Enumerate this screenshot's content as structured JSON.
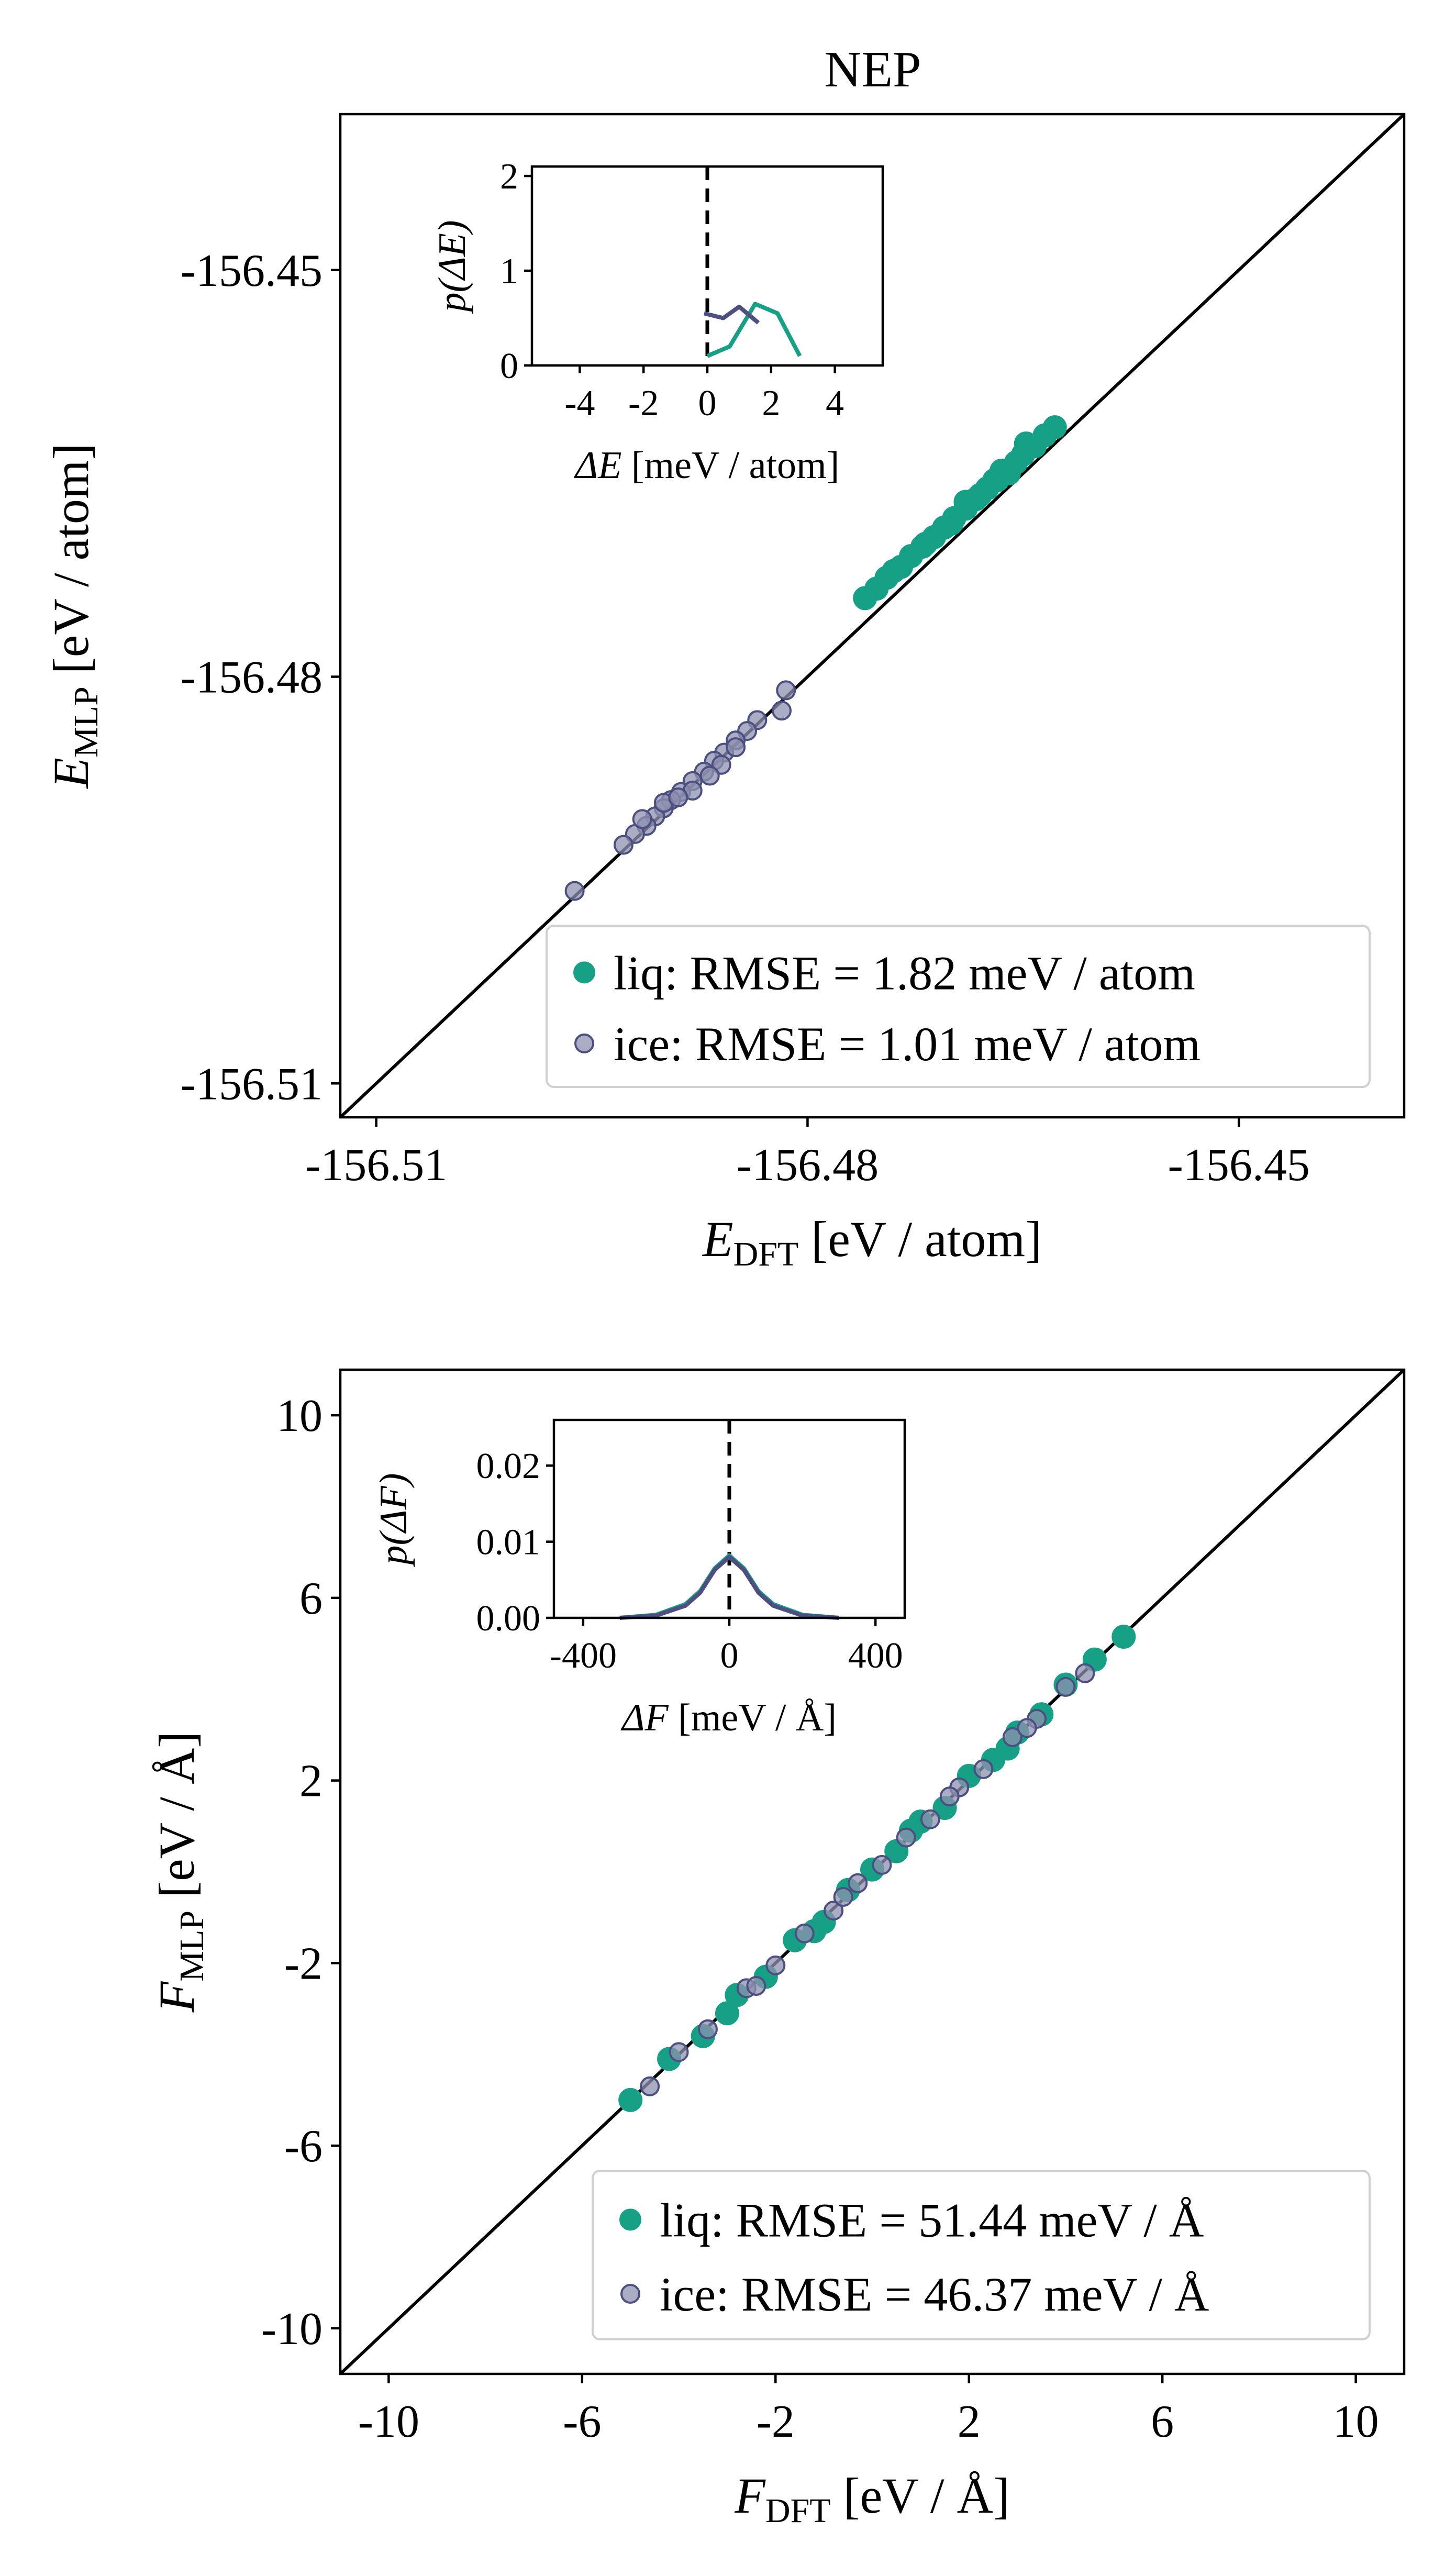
{
  "figure_title": "NEP",
  "colors": {
    "liq": "#16a085",
    "ice": "#4c4f80",
    "ice_fill": "#8e91b0",
    "diag": "#000000"
  },
  "chart_data": [
    {
      "id": "energy",
      "type": "scatter",
      "title": "NEP",
      "xlabel": {
        "sym": "E",
        "sub": "DFT",
        "unit": " [eV / atom]"
      },
      "ylabel": {
        "sym": "E",
        "sub": "MLP",
        "unit": " [eV / atom]"
      },
      "xlim": [
        -156.5125,
        -156.4385
      ],
      "ylim": [
        -156.5125,
        -156.4385
      ],
      "xticks": [
        -156.51,
        -156.48,
        -156.45
      ],
      "yticks": [
        -156.51,
        -156.48,
        -156.45
      ],
      "xticklabels": [
        "-156.51",
        "-156.48",
        "-156.45"
      ],
      "yticklabels": [
        "-156.51",
        "-156.48",
        "-156.45"
      ],
      "diagonal": true,
      "legend_position": "lower-right",
      "series": [
        {
          "name": "liq",
          "label": "liq: RMSE = 1.82 meV / atom",
          "rmse": 1.82,
          "x": [
            -156.4628,
            -156.4635,
            -156.4642,
            -156.465,
            -156.4655,
            -156.466,
            -156.4668,
            -156.4675,
            -156.4683,
            -156.469,
            -156.4698,
            -156.4705,
            -156.4712,
            -156.472,
            -156.4728,
            -156.4735,
            -156.4745,
            -156.4752,
            -156.476,
            -156.4648,
            -156.4665,
            -156.468,
            -156.47,
            -156.4718,
            -156.474,
            -156.467,
            -156.469
          ],
          "y": [
            -156.4616,
            -156.4622,
            -156.463,
            -156.4636,
            -156.4642,
            -156.465,
            -156.4655,
            -156.4661,
            -156.4669,
            -156.4676,
            -156.4683,
            -156.469,
            -156.4697,
            -156.4704,
            -156.4711,
            -156.4719,
            -156.4727,
            -156.4735,
            -156.4742,
            -156.4628,
            -156.4648,
            -156.4666,
            -156.4687,
            -156.4702,
            -156.4722,
            -156.4655,
            -156.4671
          ]
        },
        {
          "name": "ice",
          "label": "ice: RMSE = 1.01 meV / atom",
          "rmse": 1.01,
          "x": [
            -156.4815,
            -156.4818,
            -156.4835,
            -156.4842,
            -156.485,
            -156.4858,
            -156.4865,
            -156.4872,
            -156.488,
            -156.4888,
            -156.4895,
            -156.49,
            -156.4906,
            -156.4912,
            -156.492,
            -156.4928,
            -156.486,
            -156.488,
            -156.49,
            -156.4915,
            -156.485,
            -156.4868,
            -156.489,
            -156.4962
          ],
          "y": [
            -156.481,
            -156.4825,
            -156.4832,
            -156.484,
            -156.4847,
            -156.4856,
            -156.4862,
            -156.487,
            -156.4877,
            -156.4885,
            -156.4891,
            -156.4897,
            -156.4903,
            -156.491,
            -156.4916,
            -156.4924,
            -156.4865,
            -156.4884,
            -156.4893,
            -156.4905,
            -156.4852,
            -156.4873,
            -156.4889,
            -156.4958
          ]
        }
      ],
      "inset": {
        "xlabel": {
          "sym": "ΔE",
          "unit": " [meV / atom]"
        },
        "ylabel": {
          "text": "p(ΔE)"
        },
        "xlim": [
          -5.5,
          5.5
        ],
        "ylim": [
          0,
          2.1
        ],
        "xticks": [
          -4,
          -2,
          0,
          2,
          4
        ],
        "yticks": [
          0,
          1,
          2
        ],
        "xticklabels": [
          "-4",
          "-2",
          "0",
          "2",
          "4"
        ],
        "yticklabels": [
          "0",
          "1",
          "2"
        ],
        "series": [
          {
            "name": "liq",
            "x": [
              0.0,
              0.7,
              1.5,
              2.2,
              2.9
            ],
            "y": [
              0.1,
              0.2,
              0.65,
              0.55,
              0.1
            ]
          },
          {
            "name": "ice",
            "x": [
              -0.1,
              0.5,
              1.0,
              1.6
            ],
            "y": [
              0.55,
              0.5,
              0.62,
              0.45
            ]
          }
        ]
      }
    },
    {
      "id": "force",
      "type": "scatter",
      "xlabel": {
        "sym": "F",
        "sub": "DFT",
        "unit": " [eV / Å]"
      },
      "ylabel": {
        "sym": "F",
        "sub": "MLP",
        "unit": " [eV / Å]"
      },
      "xlim": [
        -11.0,
        11.0
      ],
      "ylim": [
        -11.0,
        11.0
      ],
      "xticks": [
        -10,
        -6,
        -2,
        2,
        6,
        10
      ],
      "yticks": [
        -10,
        -6,
        -2,
        2,
        6,
        10
      ],
      "xticklabels": [
        "-10",
        "-6",
        "-2",
        "2",
        "6",
        "10"
      ],
      "yticklabels": [
        "-10",
        "-6",
        "-2",
        "2",
        "6",
        "10"
      ],
      "diagonal": true,
      "legend_position": "lower-right",
      "series": [
        {
          "name": "liq",
          "label": "liq: RMSE = 51.44 meV / Å",
          "rmse": 51.44,
          "x": [
            -5.0,
            -4.2,
            -3.5,
            -2.8,
            -2.2,
            -1.6,
            -1.0,
            -0.5,
            0.0,
            0.5,
            1.0,
            1.5,
            2.0,
            2.5,
            3.0,
            3.5,
            4.0,
            4.6,
            5.2,
            -3.0,
            -1.2,
            0.8,
            2.8
          ],
          "y": [
            -5.0,
            -4.1,
            -3.6,
            -2.7,
            -2.3,
            -1.5,
            -1.1,
            -0.4,
            0.05,
            0.45,
            1.1,
            1.4,
            2.1,
            2.45,
            3.05,
            3.45,
            4.1,
            4.65,
            5.15,
            -3.1,
            -1.3,
            0.9,
            2.7
          ]
        },
        {
          "name": "ice",
          "label": "ice: RMSE = 46.37 meV / Å",
          "rmse": 46.37,
          "x": [
            -4.6,
            -4.0,
            -3.4,
            -2.6,
            -2.0,
            -1.4,
            -0.8,
            -0.3,
            0.2,
            0.7,
            1.2,
            1.8,
            2.3,
            2.9,
            3.4,
            4.0,
            4.4,
            -2.4,
            -0.6,
            1.6,
            3.2
          ],
          "y": [
            -4.7,
            -3.95,
            -3.45,
            -2.55,
            -2.05,
            -1.35,
            -0.85,
            -0.25,
            0.15,
            0.75,
            1.15,
            1.85,
            2.25,
            2.95,
            3.35,
            4.05,
            4.35,
            -2.5,
            -0.55,
            1.65,
            3.15
          ]
        }
      ],
      "inset": {
        "xlabel": {
          "sym": "ΔF",
          "unit": " [meV / Å]"
        },
        "ylabel": {
          "text": "p(ΔF)"
        },
        "xlim": [
          -480,
          480
        ],
        "ylim": [
          0,
          0.026
        ],
        "xticks": [
          -400,
          0,
          400
        ],
        "yticks": [
          0.0,
          0.01,
          0.02
        ],
        "xticklabels": [
          "-400",
          "0",
          "400"
        ],
        "yticklabels": [
          "0.00",
          "0.01",
          "0.02"
        ],
        "series": [
          {
            "name": "liq",
            "x": [
              -300,
              -200,
              -120,
              -80,
              -40,
              0,
              40,
              80,
              120,
              200,
              300
            ],
            "y": [
              0.0,
              0.0004,
              0.0018,
              0.0035,
              0.0065,
              0.0082,
              0.0065,
              0.0035,
              0.0018,
              0.0004,
              0.0
            ]
          },
          {
            "name": "ice",
            "x": [
              -300,
              -200,
              -120,
              -80,
              -40,
              0,
              40,
              80,
              120,
              200,
              300
            ],
            "y": [
              0.0,
              0.0003,
              0.0016,
              0.0033,
              0.0063,
              0.008,
              0.0063,
              0.0033,
              0.0016,
              0.0003,
              0.0
            ]
          }
        ]
      }
    }
  ]
}
